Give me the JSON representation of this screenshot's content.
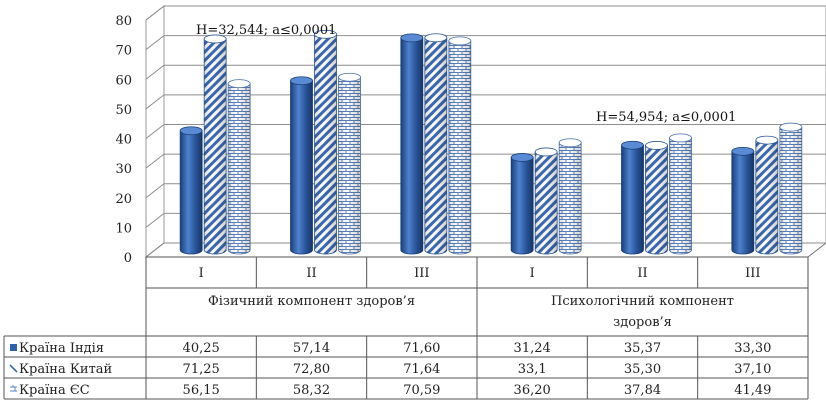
{
  "chart_data": {
    "type": "bar",
    "ylim": [
      0,
      80
    ],
    "yticks": [
      0,
      10,
      20,
      30,
      40,
      50,
      60,
      70,
      80
    ],
    "groups": [
      {
        "label": "Фізичний компонент здоров’я",
        "categories": [
          "I",
          "II",
          "III"
        ]
      },
      {
        "label_lines": [
          "Психологічний компонент",
          "здоров’я"
        ],
        "categories": [
          "I",
          "II",
          "III"
        ]
      }
    ],
    "categories": [
      "I",
      "II",
      "III",
      "I",
      "II",
      "III"
    ],
    "series": [
      {
        "name": "Країна Індія",
        "values": [
          40.25,
          57.14,
          71.6,
          31.24,
          35.37,
          33.3
        ],
        "labels": [
          "40,25",
          "57,14",
          "71,60",
          "31,24",
          "35,37",
          "33,30"
        ],
        "color": "#2f5fa8"
      },
      {
        "name": "Країна Китай",
        "values": [
          71.25,
          72.8,
          71.64,
          33.1,
          35.3,
          37.1
        ],
        "labels": [
          "71,25",
          "72,80",
          "71,64",
          "33,1",
          "35,30",
          "37,10"
        ],
        "color": "#4a72b0"
      },
      {
        "name": "Країна ЄС",
        "values": [
          56.15,
          58.32,
          70.59,
          36.2,
          37.84,
          41.49
        ],
        "labels": [
          "56,15",
          "58,32",
          "70,59",
          "36,20",
          "37,84",
          "41,49"
        ],
        "color": "#5b83c0"
      }
    ],
    "annotations": [
      "H=32,544; a≤0,0001",
      "H=54,954; a≤0,0001"
    ]
  }
}
